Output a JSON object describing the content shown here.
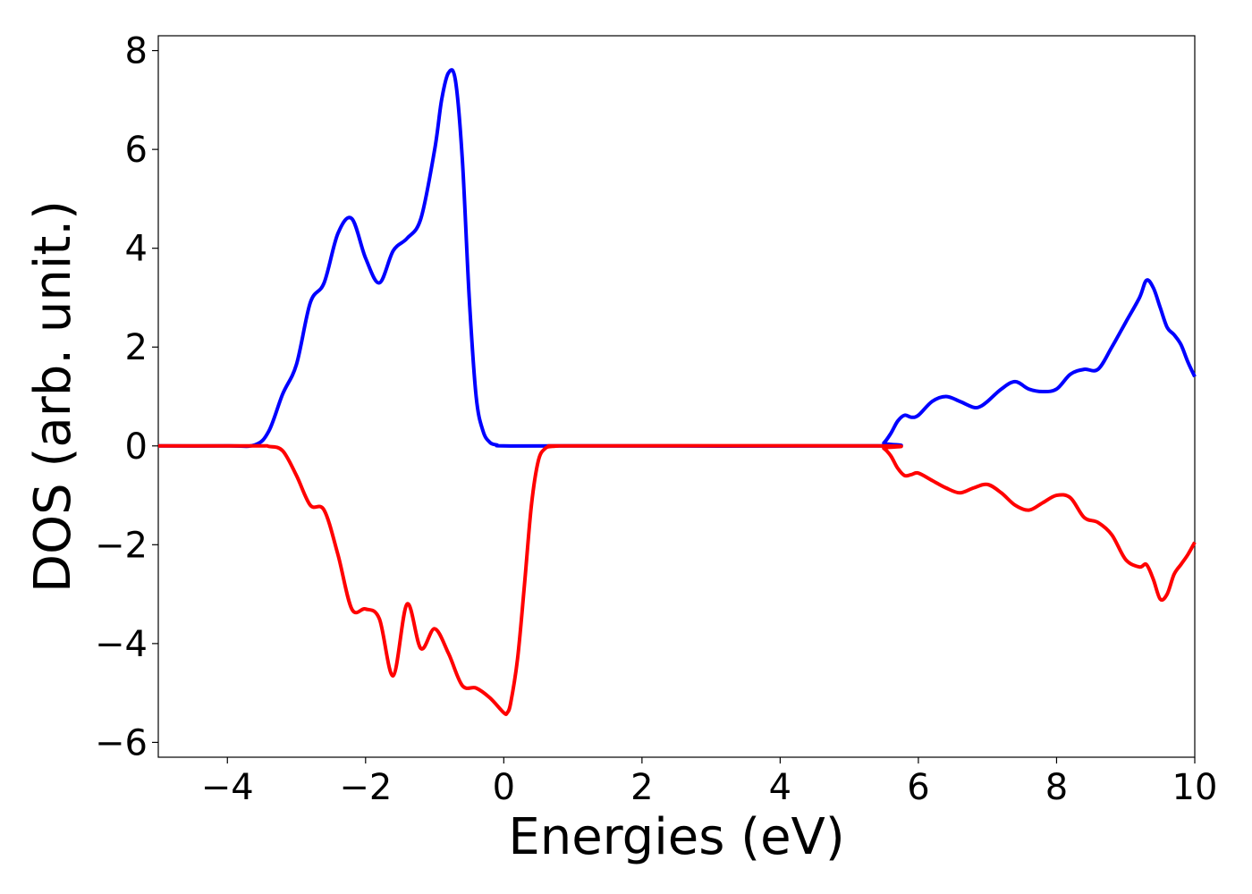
{
  "chart_data": {
    "type": "line",
    "title": "",
    "xlabel": "Energies (eV)",
    "ylabel": "DOS (arb. unit.)",
    "xlim": [
      -5,
      10
    ],
    "ylim": [
      -6.3,
      8.3
    ],
    "xticks": [
      -4,
      -2,
      0,
      2,
      4,
      6,
      8,
      10
    ],
    "xtick_labels": [
      "−4",
      "−2",
      "0",
      "2",
      "4",
      "6",
      "8",
      "10"
    ],
    "yticks": [
      8,
      6,
      4,
      2,
      0,
      -2,
      -4,
      -6
    ],
    "ytick_labels": [
      "8",
      "6",
      "4",
      "2",
      "0",
      "−2",
      "−4",
      "−6"
    ],
    "grid": false,
    "legend": "none",
    "series": [
      {
        "color": "#0000ff",
        "x": [
          -5,
          -4,
          -3.6,
          -3.4,
          -3.2,
          -3.0,
          -2.8,
          -2.6,
          -2.4,
          -2.2,
          -2.0,
          -1.8,
          -1.6,
          -1.4,
          -1.2,
          -1.0,
          -0.9,
          -0.8,
          -0.7,
          -0.6,
          -0.5,
          -0.4,
          -0.3,
          -0.2,
          -0.1,
          0.0,
          1.0,
          5.4,
          5.5,
          5.6,
          5.7,
          5.8,
          5.9,
          6.0,
          6.2,
          6.4,
          6.6,
          6.8,
          6.9,
          7.0,
          7.2,
          7.4,
          7.6,
          7.8,
          8.0,
          8.2,
          8.4,
          8.6,
          8.8,
          9.0,
          9.2,
          9.3,
          9.4,
          9.5,
          9.6,
          9.7,
          9.8,
          9.9,
          10.0
        ],
        "y": [
          0,
          0,
          0.02,
          0.3,
          1.05,
          1.65,
          2.9,
          3.3,
          4.3,
          4.6,
          3.8,
          3.3,
          3.95,
          4.2,
          4.6,
          6.0,
          7.0,
          7.55,
          7.4,
          5.8,
          3.0,
          1.0,
          0.3,
          0.07,
          0.02,
          0.0,
          0.0,
          0.0,
          0.06,
          0.25,
          0.5,
          0.62,
          0.58,
          0.62,
          0.9,
          1.0,
          0.9,
          0.78,
          0.8,
          0.9,
          1.15,
          1.3,
          1.15,
          1.1,
          1.15,
          1.45,
          1.55,
          1.55,
          2.0,
          2.5,
          3.0,
          3.35,
          3.2,
          2.8,
          2.4,
          2.25,
          2.05,
          1.7,
          1.4
        ]
      },
      {
        "color": "#ff0000",
        "x": [
          -5,
          -3.6,
          -3.4,
          -3.2,
          -3.0,
          -2.8,
          -2.6,
          -2.4,
          -2.2,
          -2.0,
          -1.8,
          -1.6,
          -1.4,
          -1.2,
          -1.0,
          -0.8,
          -0.6,
          -0.4,
          -0.2,
          0.0,
          0.05,
          0.1,
          0.2,
          0.3,
          0.4,
          0.5,
          0.6,
          0.7,
          0.8,
          0.9,
          1.0,
          5.4,
          5.5,
          5.6,
          5.7,
          5.8,
          5.9,
          6.0,
          6.2,
          6.4,
          6.6,
          6.8,
          7.0,
          7.2,
          7.4,
          7.6,
          7.8,
          8.0,
          8.2,
          8.4,
          8.6,
          8.8,
          9.0,
          9.2,
          9.3,
          9.4,
          9.5,
          9.6,
          9.7,
          9.8,
          9.9,
          10.0
        ],
        "y": [
          0,
          0,
          -0.01,
          -0.1,
          -0.6,
          -1.2,
          -1.3,
          -2.2,
          -3.3,
          -3.3,
          -3.5,
          -4.65,
          -3.2,
          -4.1,
          -3.7,
          -4.2,
          -4.85,
          -4.9,
          -5.1,
          -5.4,
          -5.4,
          -5.2,
          -4.3,
          -2.8,
          -1.2,
          -0.3,
          -0.05,
          -0.01,
          0,
          0,
          0,
          0,
          -0.05,
          -0.2,
          -0.45,
          -0.6,
          -0.58,
          -0.55,
          -0.7,
          -0.85,
          -0.95,
          -0.85,
          -0.78,
          -0.95,
          -1.2,
          -1.3,
          -1.15,
          -1.0,
          -1.05,
          -1.45,
          -1.55,
          -1.8,
          -2.3,
          -2.45,
          -2.4,
          -2.7,
          -3.1,
          -3.0,
          -2.6,
          -2.4,
          -2.2,
          -1.95
        ]
      }
    ]
  }
}
